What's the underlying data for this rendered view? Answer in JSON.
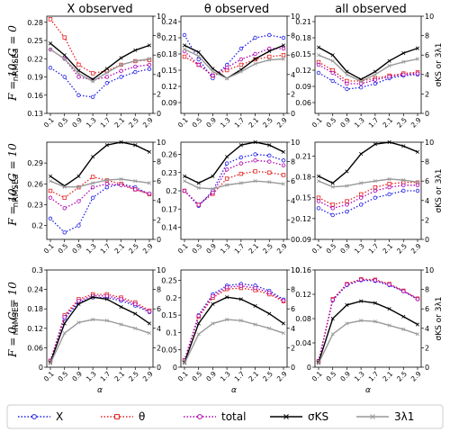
{
  "column_titles": [
    "X observed",
    "θ observed",
    "all observed"
  ],
  "row_labels": [
    "F = 10, G = 0",
    "F = 10, G = 10",
    "F = 0, G = 10"
  ],
  "left_axis_label": "nRMSEa",
  "right_axis_label": "σKS or 3λ1",
  "x_axis_label": "α",
  "x_ticks": [
    "0.1",
    "0.5",
    "0.9",
    "1.3",
    "1.7",
    "2.1",
    "2.5",
    "2.9"
  ],
  "legend": {
    "items": [
      {
        "label": "X",
        "color": "#1f1fe6",
        "style": "dotted-circle"
      },
      {
        "label": "θ",
        "color": "#e62020",
        "style": "dotted-square"
      },
      {
        "label": "total",
        "color": "#b000b0",
        "style": "dotted-circle"
      },
      {
        "label": "σKS",
        "color": "#000000",
        "style": "solid-x"
      },
      {
        "label": "3λ1",
        "color": "#999999",
        "style": "solid-x"
      }
    ]
  },
  "chart_data": [
    {
      "type": "line",
      "row": 0,
      "col": 0,
      "ylim": [
        0.13,
        0.29
      ],
      "yticks": [
        "0.13",
        "0.16",
        "0.19",
        "0.22",
        "0.25",
        "0.28"
      ],
      "y2lim": [
        0,
        10
      ],
      "y2ticks": [
        "0",
        "2",
        "4",
        "6",
        "8",
        "10"
      ],
      "x": [
        0.1,
        0.5,
        0.9,
        1.3,
        1.7,
        2.1,
        2.5,
        2.9
      ],
      "series": [
        {
          "name": "X",
          "axis": "left",
          "values": [
            0.205,
            0.19,
            0.16,
            0.157,
            0.18,
            0.19,
            0.198,
            0.203
          ]
        },
        {
          "name": "θ",
          "axis": "left",
          "values": [
            0.285,
            0.255,
            0.21,
            0.196,
            0.2,
            0.21,
            0.216,
            0.218
          ]
        },
        {
          "name": "total",
          "axis": "left",
          "values": [
            0.235,
            0.22,
            0.19,
            0.185,
            0.19,
            0.2,
            0.207,
            0.21
          ]
        },
        {
          "name": "σKS",
          "axis": "right",
          "values": [
            7.2,
            6.0,
            4.4,
            3.5,
            4.6,
            5.7,
            6.5,
            7.0
          ]
        },
        {
          "name": "3λ1",
          "axis": "right",
          "values": [
            6.6,
            5.6,
            4.1,
            3.3,
            4.2,
            5.0,
            5.4,
            5.6
          ]
        }
      ]
    },
    {
      "type": "line",
      "row": 0,
      "col": 1,
      "ylim": [
        0.07,
        0.25
      ],
      "yticks": [
        "0.09",
        "0.12",
        "0.15",
        "0.18",
        "0.21",
        "0.24"
      ],
      "y2lim": [
        0,
        10
      ],
      "y2ticks": [
        "0",
        "2",
        "4",
        "6",
        "8",
        "10"
      ],
      "x": [
        0.1,
        0.5,
        0.9,
        1.3,
        1.7,
        2.1,
        2.5,
        2.9
      ],
      "series": [
        {
          "name": "X",
          "axis": "left",
          "values": [
            0.215,
            0.17,
            0.135,
            0.16,
            0.19,
            0.21,
            0.215,
            0.21
          ]
        },
        {
          "name": "θ",
          "axis": "left",
          "values": [
            0.175,
            0.16,
            0.14,
            0.15,
            0.16,
            0.17,
            0.175,
            0.178
          ]
        },
        {
          "name": "total",
          "axis": "left",
          "values": [
            0.185,
            0.16,
            0.14,
            0.155,
            0.17,
            0.18,
            0.19,
            0.19
          ]
        },
        {
          "name": "σKS",
          "axis": "right",
          "values": [
            7.0,
            6.3,
            4.6,
            3.6,
            4.5,
            5.6,
            6.4,
            7.0
          ]
        },
        {
          "name": "3λ1",
          "axis": "right",
          "values": [
            6.6,
            5.9,
            4.3,
            3.6,
            4.3,
            5.1,
            5.5,
            5.6
          ]
        }
      ]
    },
    {
      "type": "line",
      "row": 0,
      "col": 2,
      "ylim": [
        0.04,
        0.22
      ],
      "yticks": [
        "0.06",
        "0.09",
        "0.12",
        "0.15",
        "0.18",
        "0.21"
      ],
      "y2lim": [
        0,
        10
      ],
      "y2ticks": [
        "0",
        "2",
        "4",
        "6",
        "8",
        "10"
      ],
      "x": [
        0.1,
        0.5,
        0.9,
        1.3,
        1.7,
        2.1,
        2.5,
        2.9
      ],
      "series": [
        {
          "name": "X",
          "axis": "left",
          "values": [
            0.115,
            0.1,
            0.085,
            0.088,
            0.095,
            0.105,
            0.11,
            0.112
          ]
        },
        {
          "name": "θ",
          "axis": "left",
          "values": [
            0.135,
            0.12,
            0.1,
            0.1,
            0.105,
            0.11,
            0.114,
            0.116
          ]
        },
        {
          "name": "total",
          "axis": "left",
          "values": [
            0.13,
            0.115,
            0.095,
            0.095,
            0.102,
            0.108,
            0.112,
            0.114
          ]
        },
        {
          "name": "σKS",
          "axis": "right",
          "values": [
            6.8,
            6.0,
            4.3,
            3.5,
            4.3,
            5.4,
            6.2,
            6.7
          ]
        },
        {
          "name": "3λ1",
          "axis": "right",
          "values": [
            6.0,
            5.4,
            4.0,
            3.3,
            4.0,
            4.9,
            5.3,
            5.6
          ]
        }
      ]
    },
    {
      "type": "line",
      "row": 1,
      "col": 0,
      "ylim": [
        0.18,
        0.32
      ],
      "yticks": [
        "0.2",
        "0.23",
        "0.26",
        "0.29"
      ],
      "y2lim": [
        0,
        10
      ],
      "y2ticks": [
        "0",
        "2",
        "4",
        "6",
        "8",
        "10"
      ],
      "x": [
        0.1,
        0.5,
        0.9,
        1.3,
        1.7,
        2.1,
        2.5,
        2.9
      ],
      "series": [
        {
          "name": "X",
          "axis": "left",
          "values": [
            0.21,
            0.19,
            0.2,
            0.24,
            0.255,
            0.26,
            0.255,
            0.245
          ]
        },
        {
          "name": "θ",
          "axis": "left",
          "values": [
            0.25,
            0.24,
            0.255,
            0.27,
            0.265,
            0.26,
            0.252,
            0.245
          ]
        },
        {
          "name": "total",
          "axis": "left",
          "values": [
            0.24,
            0.225,
            0.235,
            0.255,
            0.26,
            0.258,
            0.252,
            0.246
          ]
        },
        {
          "name": "σKS",
          "axis": "right",
          "values": [
            6.5,
            5.5,
            6.5,
            8.5,
            9.7,
            10.0,
            9.7,
            9.0
          ]
        },
        {
          "name": "3λ1",
          "axis": "right",
          "values": [
            6.0,
            5.4,
            5.4,
            5.8,
            6.1,
            6.2,
            6.0,
            5.8
          ]
        }
      ]
    },
    {
      "type": "line",
      "row": 1,
      "col": 1,
      "ylim": [
        0.12,
        0.28
      ],
      "yticks": [
        "0.14",
        "0.17",
        "0.2",
        "0.23",
        "0.26"
      ],
      "y2lim": [
        0,
        10
      ],
      "y2ticks": [
        "0",
        "2",
        "4",
        "6",
        "8",
        "10"
      ],
      "x": [
        0.1,
        0.5,
        0.9,
        1.3,
        1.7,
        2.1,
        2.5,
        2.9
      ],
      "series": [
        {
          "name": "X",
          "axis": "left",
          "values": [
            0.2,
            0.175,
            0.2,
            0.245,
            0.255,
            0.26,
            0.258,
            0.25
          ]
        },
        {
          "name": "θ",
          "axis": "left",
          "values": [
            0.2,
            0.177,
            0.195,
            0.22,
            0.228,
            0.232,
            0.23,
            0.226
          ]
        },
        {
          "name": "total",
          "axis": "left",
          "values": [
            0.2,
            0.177,
            0.197,
            0.235,
            0.245,
            0.25,
            0.248,
            0.242
          ]
        },
        {
          "name": "σKS",
          "axis": "right",
          "values": [
            6.5,
            5.8,
            6.5,
            8.5,
            9.7,
            10.0,
            9.7,
            9.0
          ]
        },
        {
          "name": "3λ1",
          "axis": "right",
          "values": [
            6.0,
            5.3,
            5.2,
            5.6,
            5.8,
            6.0,
            5.9,
            5.7
          ]
        }
      ]
    },
    {
      "type": "line",
      "row": 1,
      "col": 2,
      "ylim": [
        0.09,
        0.23
      ],
      "yticks": [
        "0.09",
        "0.12",
        "0.15",
        "0.18",
        "0.21"
      ],
      "y2lim": [
        0,
        10
      ],
      "y2ticks": [
        "0",
        "2",
        "4",
        "6",
        "8",
        "10"
      ],
      "x": [
        0.1,
        0.5,
        0.9,
        1.3,
        1.7,
        2.1,
        2.5,
        2.9
      ],
      "series": [
        {
          "name": "X",
          "axis": "left",
          "values": [
            0.135,
            0.125,
            0.13,
            0.14,
            0.15,
            0.155,
            0.16,
            0.16
          ]
        },
        {
          "name": "θ",
          "axis": "left",
          "values": [
            0.15,
            0.14,
            0.145,
            0.155,
            0.165,
            0.17,
            0.172,
            0.172
          ]
        },
        {
          "name": "total",
          "axis": "left",
          "values": [
            0.145,
            0.135,
            0.14,
            0.15,
            0.16,
            0.165,
            0.168,
            0.168
          ]
        },
        {
          "name": "σKS",
          "axis": "right",
          "values": [
            6.5,
            5.8,
            7.0,
            8.8,
            9.8,
            10.0,
            9.6,
            9.0
          ]
        },
        {
          "name": "3λ1",
          "axis": "right",
          "values": [
            6.0,
            5.4,
            5.5,
            5.8,
            6.0,
            6.2,
            6.1,
            5.9
          ]
        }
      ]
    },
    {
      "type": "line",
      "row": 2,
      "col": 0,
      "ylim": [
        0,
        0.3
      ],
      "yticks": [
        "0",
        "0.06",
        "0.12",
        "0.18",
        "0.24",
        "0.3"
      ],
      "y2lim": [
        0,
        10
      ],
      "y2ticks": [
        "0",
        "2",
        "4",
        "6",
        "8",
        "10"
      ],
      "x": [
        0.1,
        0.5,
        0.9,
        1.3,
        1.7,
        2.1,
        2.5,
        2.9
      ],
      "series": [
        {
          "name": "X",
          "axis": "left",
          "values": [
            0.02,
            0.15,
            0.2,
            0.215,
            0.215,
            0.205,
            0.19,
            0.17
          ]
        },
        {
          "name": "θ",
          "axis": "left",
          "values": [
            0.02,
            0.16,
            0.21,
            0.225,
            0.225,
            0.215,
            0.2,
            0.175
          ]
        },
        {
          "name": "total",
          "axis": "left",
          "values": [
            0.02,
            0.155,
            0.205,
            0.22,
            0.22,
            0.21,
            0.195,
            0.172
          ]
        },
        {
          "name": "σKS",
          "axis": "right",
          "values": [
            0.5,
            4.5,
            6.5,
            7.2,
            7.0,
            6.2,
            5.5,
            4.5
          ]
        },
        {
          "name": "3λ1",
          "axis": "right",
          "values": [
            0.4,
            3.5,
            4.6,
            4.9,
            4.8,
            4.4,
            4.0,
            3.5
          ]
        }
      ]
    },
    {
      "type": "line",
      "row": 2,
      "col": 1,
      "ylim": [
        0,
        0.28
      ],
      "yticks": [
        "0",
        "0.05",
        "0.1",
        "0.15",
        "0.2",
        "0.25"
      ],
      "y2lim": [
        0,
        10
      ],
      "y2ticks": [
        "0",
        "2",
        "4",
        "6",
        "8",
        "10"
      ],
      "x": [
        0.1,
        0.5,
        0.9,
        1.3,
        1.7,
        2.1,
        2.5,
        2.9
      ],
      "series": [
        {
          "name": "X",
          "axis": "left",
          "values": [
            0.02,
            0.15,
            0.21,
            0.235,
            0.24,
            0.235,
            0.22,
            0.195
          ]
        },
        {
          "name": "θ",
          "axis": "left",
          "values": [
            0.02,
            0.145,
            0.2,
            0.225,
            0.228,
            0.222,
            0.21,
            0.19
          ]
        },
        {
          "name": "total",
          "axis": "left",
          "values": [
            0.02,
            0.148,
            0.205,
            0.23,
            0.234,
            0.228,
            0.215,
            0.192
          ]
        },
        {
          "name": "σKS",
          "axis": "right",
          "values": [
            0.5,
            4.5,
            6.5,
            7.2,
            7.0,
            6.3,
            5.5,
            4.5
          ]
        },
        {
          "name": "3λ1",
          "axis": "right",
          "values": [
            0.4,
            3.4,
            4.5,
            4.9,
            4.8,
            4.4,
            4.0,
            3.5
          ]
        }
      ]
    },
    {
      "type": "line",
      "row": 2,
      "col": 2,
      "ylim": [
        0,
        0.16
      ],
      "yticks": [
        "0",
        "0.04",
        "0.08",
        "0.12",
        "0.16"
      ],
      "y2lim": [
        0,
        10
      ],
      "y2ticks": [
        "0",
        "2",
        "4",
        "6",
        "8",
        "10"
      ],
      "x": [
        0.1,
        0.5,
        0.9,
        1.3,
        1.7,
        2.1,
        2.5,
        2.9
      ],
      "series": [
        {
          "name": "X",
          "axis": "left",
          "values": [
            0.01,
            0.11,
            0.135,
            0.143,
            0.142,
            0.135,
            0.125,
            0.112
          ]
        },
        {
          "name": "θ",
          "axis": "left",
          "values": [
            0.01,
            0.112,
            0.137,
            0.145,
            0.144,
            0.137,
            0.126,
            0.113
          ]
        },
        {
          "name": "total",
          "axis": "left",
          "values": [
            0.01,
            0.111,
            0.136,
            0.144,
            0.143,
            0.136,
            0.125,
            0.112
          ]
        },
        {
          "name": "σKS",
          "axis": "right",
          "values": [
            0.5,
            5.0,
            6.4,
            6.8,
            6.6,
            6.0,
            5.2,
            4.4
          ]
        },
        {
          "name": "3λ1",
          "axis": "right",
          "values": [
            0.4,
            3.4,
            4.5,
            4.8,
            4.7,
            4.3,
            3.9,
            3.4
          ]
        }
      ]
    }
  ]
}
